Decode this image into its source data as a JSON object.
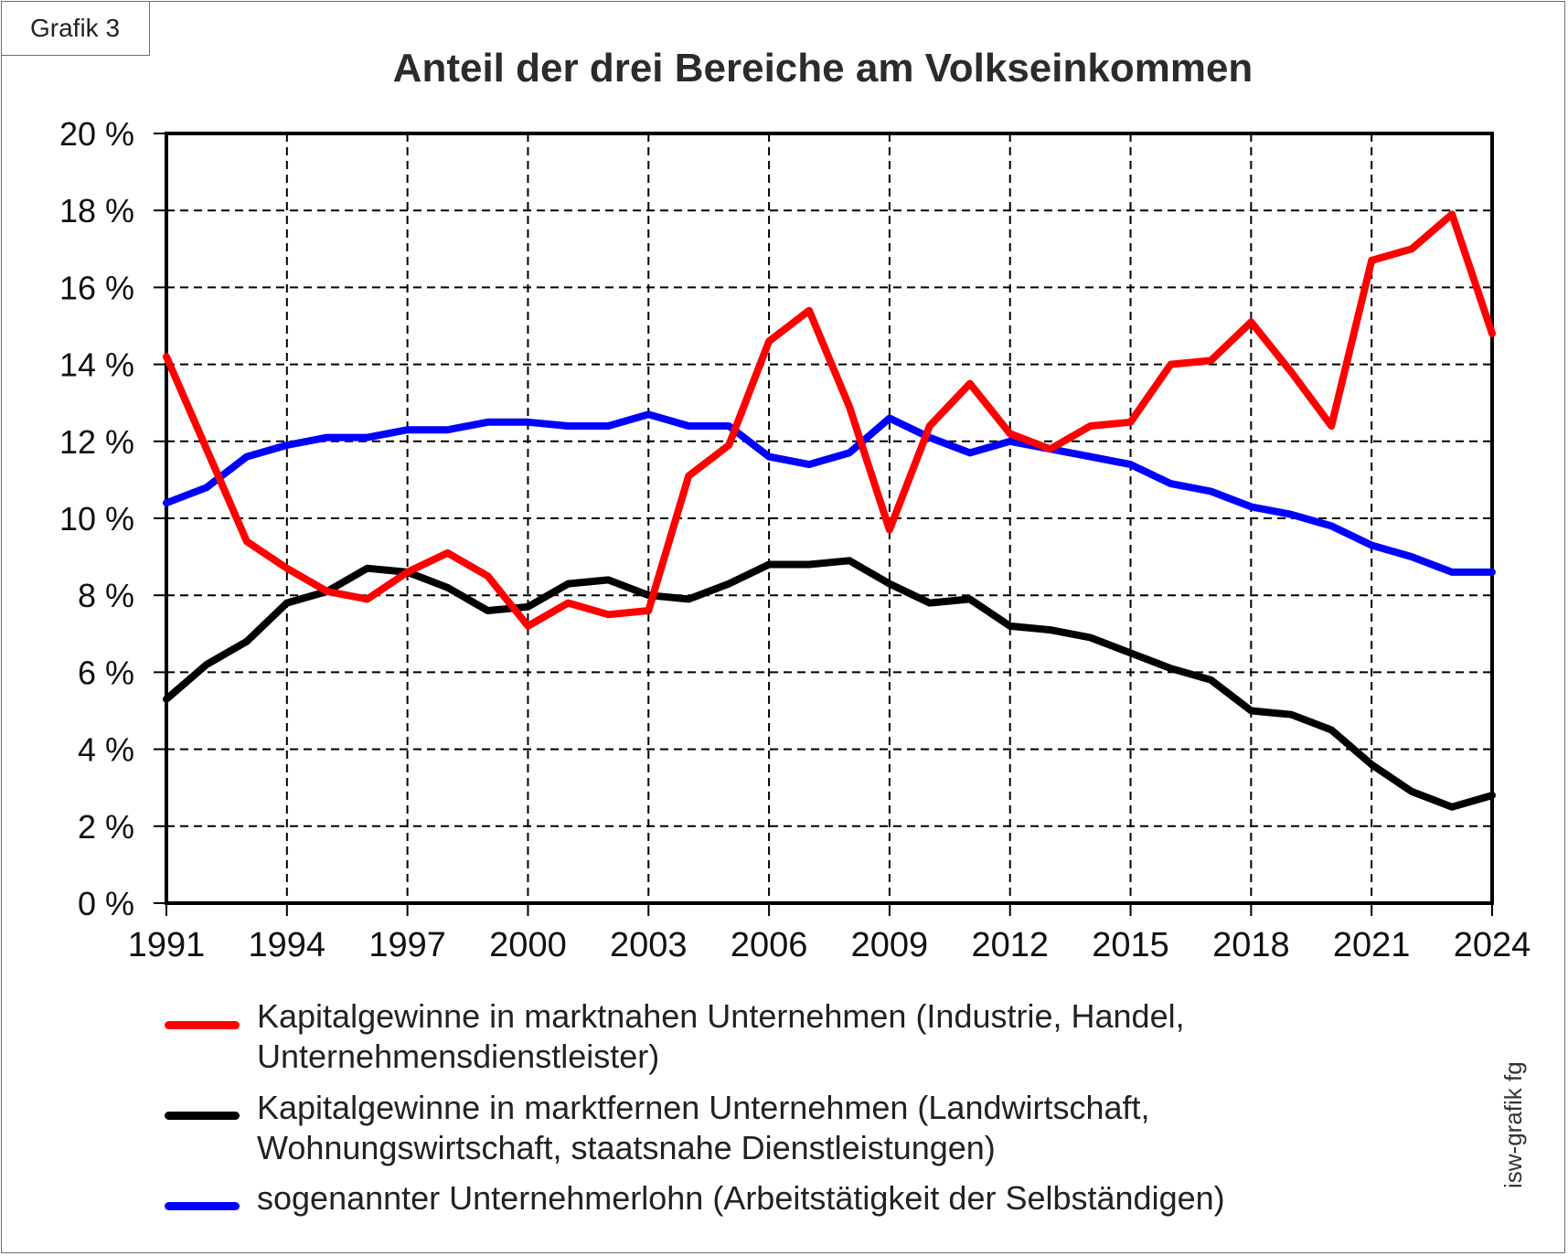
{
  "badge": "Grafik 3",
  "credit": "isw-grafik fg",
  "chart_data": {
    "type": "line",
    "title": "Anteil der drei Bereiche am Volkseinkommen",
    "xlabel": "",
    "ylabel": "",
    "x": [
      1991,
      1992,
      1993,
      1994,
      1995,
      1996,
      1997,
      1998,
      1999,
      2000,
      2001,
      2002,
      2003,
      2004,
      2005,
      2006,
      2007,
      2008,
      2009,
      2010,
      2011,
      2012,
      2013,
      2014,
      2015,
      2016,
      2017,
      2018,
      2019,
      2020,
      2021,
      2022,
      2023,
      2024
    ],
    "xticks": [
      "1991",
      "1994",
      "1997",
      "2000",
      "2003",
      "2006",
      "2009",
      "2012",
      "2015",
      "2018",
      "2021",
      "2024"
    ],
    "xlim": [
      1991,
      2024
    ],
    "ylim": [
      0,
      20
    ],
    "yticks": [
      "0 %",
      "2 %",
      "4 %",
      "6 %",
      "8 %",
      "10 %",
      "12 %",
      "14 %",
      "16 %",
      "18 %",
      "20 %"
    ],
    "grid": true,
    "series": [
      {
        "name": "Kapitalgewinne in marktnahen Unternehmen (Industrie, Handel, Unternehmensdienstleister)",
        "legend_lines": [
          "Kapitalgewinne in marktnahen Unternehmen (Industrie, Handel,",
          "Unternehmensdienstleister)"
        ],
        "color": "#ff0000",
        "values": [
          14.2,
          11.8,
          9.4,
          8.7,
          8.1,
          7.9,
          8.6,
          9.1,
          8.5,
          7.2,
          7.8,
          7.5,
          7.6,
          11.1,
          11.9,
          14.6,
          15.4,
          12.9,
          9.7,
          12.4,
          13.5,
          12.2,
          11.8,
          12.4,
          12.5,
          14.0,
          14.1,
          15.1,
          13.8,
          12.4,
          16.7,
          17.0,
          17.9,
          14.8
        ]
      },
      {
        "name": "Kapitalgewinne in marktfernen Unternehmen (Landwirtschaft, Wohnungswirtschaft, staatsnahe Dienstleistungen)",
        "legend_lines": [
          "Kapitalgewinne in marktfernen Unternehmen (Landwirtschaft,",
          "Wohnungswirtschaft, staatsnahe Dienstleistungen)"
        ],
        "color": "#000000",
        "values": [
          5.3,
          6.2,
          6.8,
          7.8,
          8.1,
          8.7,
          8.6,
          8.2,
          7.6,
          7.7,
          8.3,
          8.4,
          8.0,
          7.9,
          8.3,
          8.8,
          8.8,
          8.9,
          8.3,
          7.8,
          7.9,
          7.2,
          7.1,
          6.9,
          6.5,
          6.1,
          5.8,
          5.0,
          4.9,
          4.5,
          3.6,
          2.9,
          2.5,
          2.8
        ]
      },
      {
        "name": "sogenannter Unternehmerlohn (Arbeitstätigkeit der Selbständigen)",
        "legend_lines": [
          "sogenannter Unternehmerlohn (Arbeitstätigkeit der Selbständigen)"
        ],
        "color": "#0000ff",
        "values": [
          10.4,
          10.8,
          11.6,
          11.9,
          12.1,
          12.1,
          12.3,
          12.3,
          12.5,
          12.5,
          12.4,
          12.4,
          12.7,
          12.4,
          12.4,
          11.6,
          11.4,
          11.7,
          12.6,
          12.1,
          11.7,
          12.0,
          11.8,
          11.6,
          11.4,
          10.9,
          10.7,
          10.3,
          10.1,
          9.8,
          9.3,
          9.0,
          8.6,
          8.6
        ]
      }
    ]
  }
}
